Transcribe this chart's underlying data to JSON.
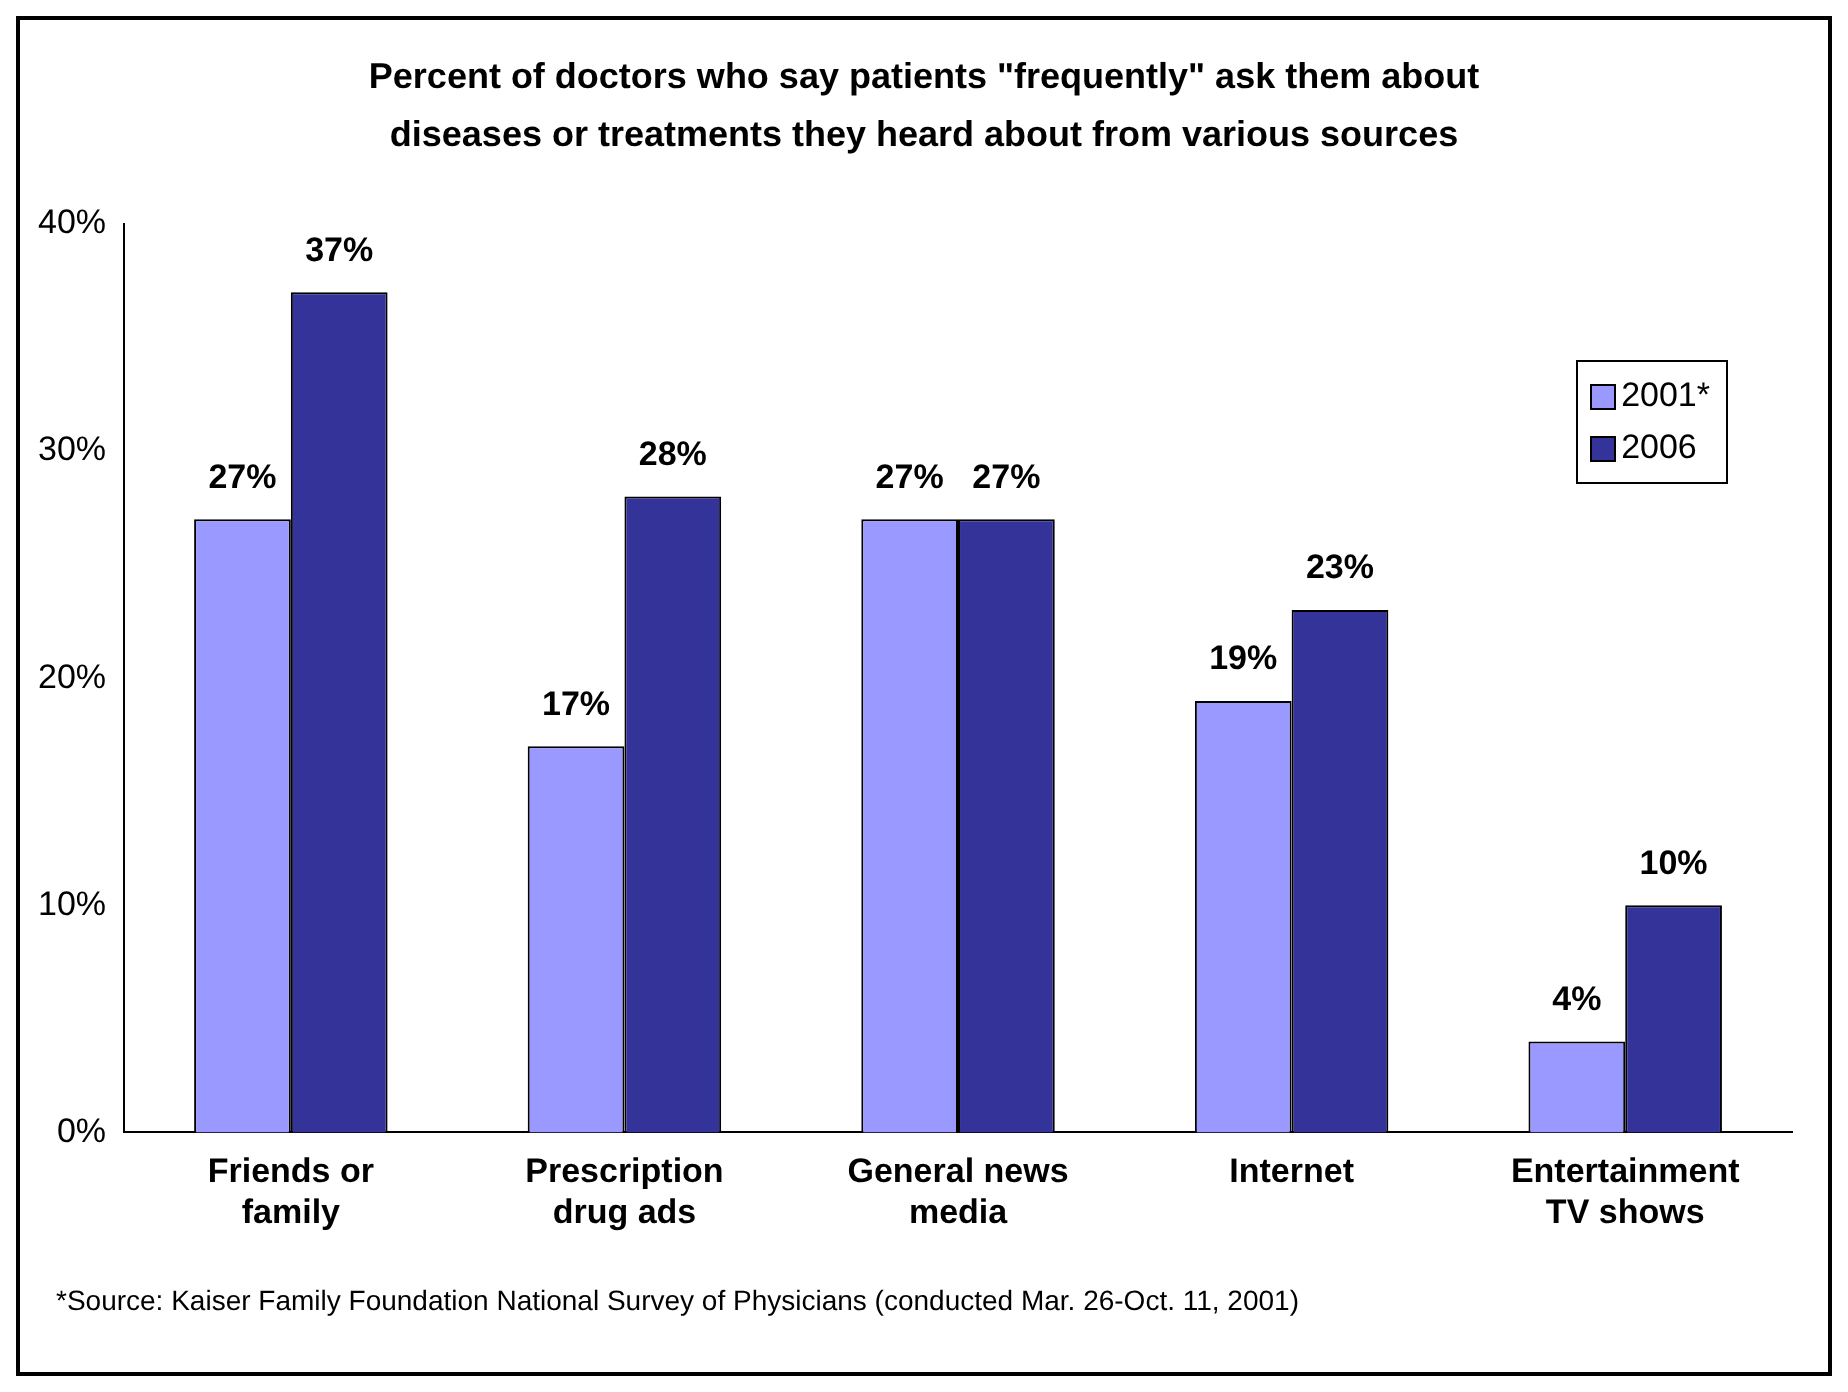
{
  "chart_data": {
    "type": "bar",
    "title": "Percent of doctors who say patients \"frequently\" ask them about diseases or treatments they heard about from various sources",
    "categories": [
      "Friends or family",
      "Prescription drug ads",
      "General news media",
      "Internet",
      "Entertainment TV shows"
    ],
    "series": [
      {
        "name": "2001*",
        "color": "#9999ff",
        "values": [
          27,
          17,
          27,
          19,
          4
        ],
        "value_labels": [
          "27%",
          "17%",
          "27%",
          "19%",
          "4%"
        ]
      },
      {
        "name": "2006",
        "color": "#333399",
        "values": [
          37,
          28,
          27,
          23,
          10
        ],
        "value_labels": [
          "37%",
          "28%",
          "27%",
          "23%",
          "10%"
        ]
      }
    ],
    "ylim": [
      0,
      40
    ],
    "yticks": [
      {
        "value": 0,
        "label": "0%"
      },
      {
        "value": 10,
        "label": "10%"
      },
      {
        "value": 20,
        "label": "20%"
      },
      {
        "value": 30,
        "label": "30%"
      },
      {
        "value": 40,
        "label": "40%"
      }
    ],
    "grid": false,
    "legend": "top right",
    "annotations": [
      "*Source: Kaiser Family Foundation National Survey of Physicians (conducted Mar. 26-Oct. 11, 2001)"
    ]
  }
}
